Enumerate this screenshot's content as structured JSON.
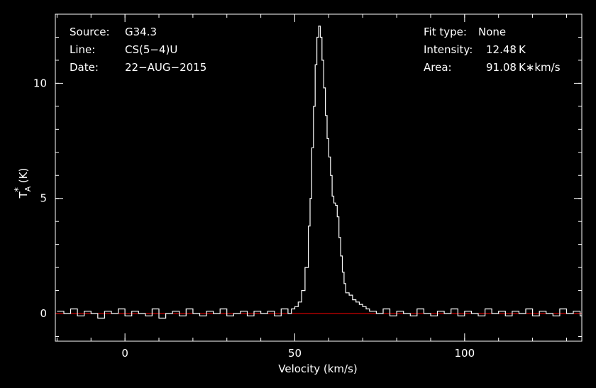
{
  "info": {
    "source_label": "Source:",
    "source_value": "G34.3",
    "line_label": "Line:",
    "line_value": "CS(5−4)U",
    "date_label": "Date:",
    "date_value": "22−AUG−2015",
    "fit_label": "Fit type:",
    "fit_value": "None",
    "intensity_label": "Intensity:",
    "intensity_value": "12.48 K",
    "area_label": "Area:",
    "area_value": "91.08 K∗km/s"
  },
  "chart_data": {
    "type": "line",
    "xlabel": "Velocity (km/s)",
    "ylabel_main": "T",
    "ylabel_sub": "A",
    "ylabel_sup": "*",
    "ylabel_unit": "(K)",
    "xlim": [
      -20.5,
      134.5
    ],
    "ylim": [
      -1.2,
      13.0
    ],
    "xticks": [
      0,
      50,
      100
    ],
    "yticks": [
      0,
      5,
      10
    ],
    "xtick_labels": [
      "0",
      "50",
      "100"
    ],
    "ytick_labels": [
      "0",
      "5",
      "10"
    ],
    "x_minor_step": 10,
    "y_minor_step": 1,
    "baseline": 0,
    "peak": {
      "x": 57.0,
      "y": 12.48
    },
    "series": [
      {
        "color": "#ffffff",
        "points": [
          [
            -20,
            0.1
          ],
          [
            -18,
            0.0
          ],
          [
            -16,
            0.2
          ],
          [
            -14,
            -0.1
          ],
          [
            -12,
            0.1
          ],
          [
            -10,
            0.0
          ],
          [
            -8,
            -0.2
          ],
          [
            -6,
            0.1
          ],
          [
            -4,
            0.0
          ],
          [
            -2,
            0.2
          ],
          [
            0,
            -0.1
          ],
          [
            2,
            0.1
          ],
          [
            4,
            0.0
          ],
          [
            6,
            -0.1
          ],
          [
            8,
            0.2
          ],
          [
            10,
            -0.2
          ],
          [
            12,
            0.0
          ],
          [
            14,
            0.1
          ],
          [
            16,
            -0.1
          ],
          [
            18,
            0.2
          ],
          [
            20,
            0.0
          ],
          [
            22,
            -0.1
          ],
          [
            24,
            0.1
          ],
          [
            26,
            0.0
          ],
          [
            28,
            0.2
          ],
          [
            30,
            -0.1
          ],
          [
            32,
            0.0
          ],
          [
            34,
            0.1
          ],
          [
            36,
            -0.1
          ],
          [
            38,
            0.1
          ],
          [
            40,
            0.0
          ],
          [
            42,
            0.1
          ],
          [
            44,
            -0.1
          ],
          [
            46,
            0.2
          ],
          [
            48,
            0.0
          ],
          [
            49,
            0.2
          ],
          [
            50,
            0.3
          ],
          [
            51,
            0.5
          ],
          [
            52,
            1.0
          ],
          [
            53,
            2.0
          ],
          [
            54,
            3.8
          ],
          [
            54.5,
            5.0
          ],
          [
            55,
            7.2
          ],
          [
            55.5,
            9.0
          ],
          [
            56,
            10.8
          ],
          [
            56.5,
            12.0
          ],
          [
            57,
            12.48
          ],
          [
            57.5,
            12.0
          ],
          [
            58,
            11.0
          ],
          [
            58.5,
            9.8
          ],
          [
            59,
            8.6
          ],
          [
            59.5,
            7.6
          ],
          [
            60,
            6.8
          ],
          [
            60.5,
            6.0
          ],
          [
            61,
            5.1
          ],
          [
            61.5,
            4.8
          ],
          [
            62,
            4.7
          ],
          [
            62.5,
            4.2
          ],
          [
            63,
            3.3
          ],
          [
            63.5,
            2.5
          ],
          [
            64,
            1.8
          ],
          [
            64.5,
            1.3
          ],
          [
            65,
            0.9
          ],
          [
            66,
            0.8
          ],
          [
            67,
            0.6
          ],
          [
            68,
            0.5
          ],
          [
            69,
            0.4
          ],
          [
            70,
            0.3
          ],
          [
            71,
            0.2
          ],
          [
            72,
            0.1
          ],
          [
            74,
            0.0
          ],
          [
            76,
            0.2
          ],
          [
            78,
            -0.1
          ],
          [
            80,
            0.1
          ],
          [
            82,
            0.0
          ],
          [
            84,
            -0.1
          ],
          [
            86,
            0.2
          ],
          [
            88,
            0.0
          ],
          [
            90,
            -0.1
          ],
          [
            92,
            0.1
          ],
          [
            94,
            0.0
          ],
          [
            96,
            0.2
          ],
          [
            98,
            -0.1
          ],
          [
            100,
            0.1
          ],
          [
            102,
            0.0
          ],
          [
            104,
            -0.1
          ],
          [
            106,
            0.2
          ],
          [
            108,
            0.0
          ],
          [
            110,
            0.1
          ],
          [
            112,
            -0.1
          ],
          [
            114,
            0.1
          ],
          [
            116,
            0.0
          ],
          [
            118,
            0.2
          ],
          [
            120,
            -0.1
          ],
          [
            122,
            0.1
          ],
          [
            124,
            0.0
          ],
          [
            126,
            -0.1
          ],
          [
            128,
            0.2
          ],
          [
            130,
            0.0
          ],
          [
            132,
            0.1
          ],
          [
            134,
            -0.1
          ]
        ]
      }
    ],
    "baseline_color": "#ff0000",
    "background": "#000000",
    "foreground": "#ffffff"
  }
}
